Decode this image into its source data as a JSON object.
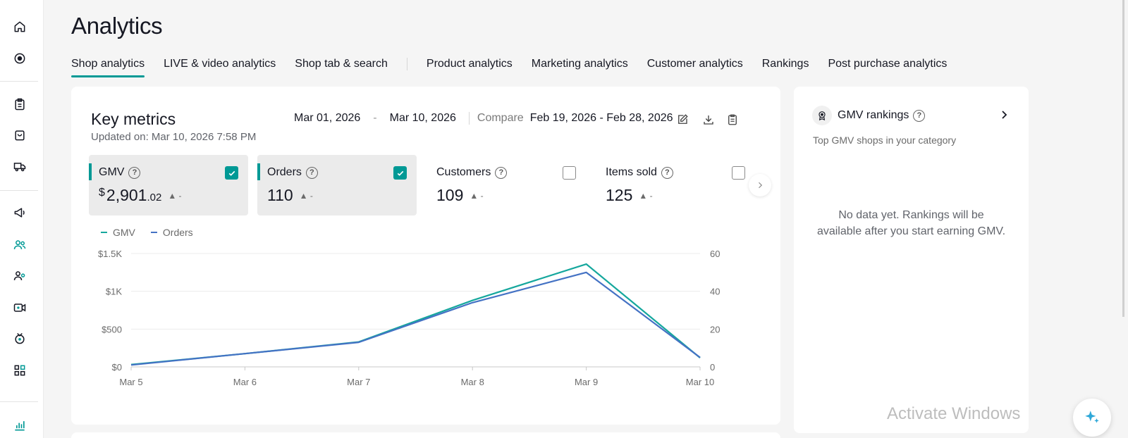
{
  "page": {
    "title": "Analytics"
  },
  "sidebar": {
    "icons": [
      "home-icon",
      "compass-icon",
      "clipboard-icon",
      "shopping-bag-icon",
      "truck-icon",
      "megaphone-icon",
      "users-icon",
      "user-group-icon",
      "video-icon",
      "live-stream-icon",
      "apps-icon",
      "analytics-icon"
    ]
  },
  "tabs": [
    {
      "label": "Shop analytics",
      "active": true
    },
    {
      "label": "LIVE & video analytics"
    },
    {
      "label": "Shop tab & search"
    },
    {
      "label": "Product analytics"
    },
    {
      "label": "Marketing analytics"
    },
    {
      "label": "Customer analytics"
    },
    {
      "label": "Rankings"
    },
    {
      "label": "Post purchase analytics"
    }
  ],
  "key_metrics": {
    "title": "Key metrics",
    "updated": "Updated on: Mar 10, 2026 7:58 PM",
    "date_start": "Mar 01, 2026",
    "date_sep": "-",
    "date_end": "Mar 10, 2026",
    "compare_label": "Compare",
    "compare_range": "Feb 19, 2026 - Feb 28, 2026",
    "metrics": [
      {
        "label": "GMV",
        "currency": "$",
        "value": "2,901",
        "decimals": ".02",
        "trend": "▲ -",
        "checked": true
      },
      {
        "label": "Orders",
        "value": "110",
        "trend": "▲ -",
        "checked": true
      },
      {
        "label": "Customers",
        "value": "109",
        "trend": "▲ -",
        "checked": false
      },
      {
        "label": "Items sold",
        "value": "125",
        "trend": "▲ -",
        "checked": false
      }
    ]
  },
  "colors": {
    "gmv": "#15a79d",
    "orders": "#4472c4",
    "accent": "#009995"
  },
  "chart_data": {
    "type": "line",
    "categories": [
      "Mar 5",
      "Mar 6",
      "Mar 7",
      "Mar 8",
      "Mar 9",
      "Mar 10"
    ],
    "series": [
      {
        "name": "GMV",
        "axis": "left",
        "values": [
          30,
          175,
          330,
          880,
          1360,
          120
        ]
      },
      {
        "name": "Orders",
        "axis": "right",
        "values": [
          1,
          7,
          13,
          34,
          50,
          5
        ]
      }
    ],
    "y_left": {
      "ticks": [
        "$0",
        "$500",
        "$1K",
        "$1.5K"
      ],
      "values": [
        0,
        500,
        1000,
        1500
      ],
      "ylim": [
        0,
        1500
      ]
    },
    "y_right": {
      "ticks": [
        "0",
        "20",
        "40",
        "60"
      ],
      "values": [
        0,
        20,
        40,
        60
      ],
      "ylim": [
        0,
        60
      ]
    },
    "grid": true,
    "legend": "top-left"
  },
  "gmv_rankings": {
    "title": "GMV rankings",
    "subtitle": "Top GMV shops in your category",
    "empty_line1": "No data yet. Rankings will be",
    "empty_line2": "available after you start earning GMV."
  },
  "watermark": "Activate Windows"
}
